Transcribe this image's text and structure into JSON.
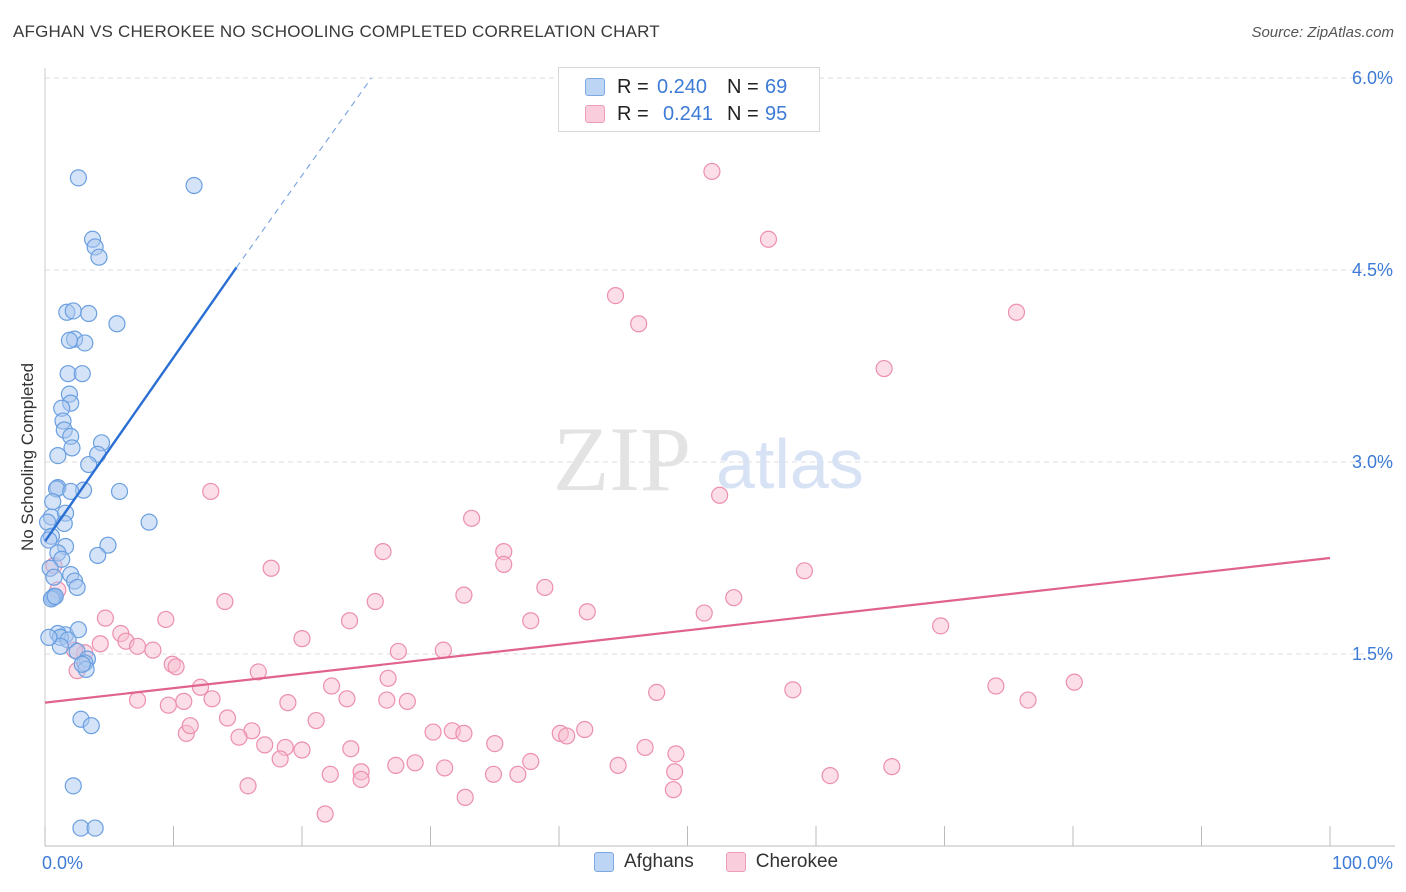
{
  "title": "AFGHAN VS CHEROKEE NO SCHOOLING COMPLETED CORRELATION CHART",
  "source": "Source: ZipAtlas.com",
  "watermark": {
    "zip": "ZIP",
    "atlas": "atlas"
  },
  "legend": {
    "rows": [
      {
        "r_label": "R =",
        "r_value": "0.240",
        "n_label": "N =",
        "n_value": "69"
      },
      {
        "r_label": "R =",
        "r_value": "0.241",
        "n_label": "N =",
        "n_value": "95"
      }
    ]
  },
  "bottom_legend": {
    "afghans": "Afghans",
    "cherokee": "Cherokee"
  },
  "colors": {
    "afghans_fill": "#a9c8f0",
    "afghans_stroke": "#6a9fe0",
    "afghans_line": "#2a6fd4",
    "cherokee_fill": "#f7bdd0",
    "cherokee_stroke": "#ec8fae",
    "cherokee_line": "#e0628e",
    "tick_text": "#3d7bd6",
    "grid": "#dcdcdc"
  },
  "chart_data": {
    "type": "scatter",
    "title": "AFGHAN VS CHEROKEE NO SCHOOLING COMPLETED CORRELATION CHART",
    "xlabel": "",
    "ylabel": "No Schooling Completed",
    "xlim": [
      0,
      100
    ],
    "ylim": [
      0,
      6.0
    ],
    "x_tick_labels": [
      "0.0%",
      "100.0%"
    ],
    "y_ticks": [
      1.5,
      3.0,
      4.5,
      6.0
    ],
    "y_tick_labels": [
      "1.5%",
      "3.0%",
      "4.5%",
      "6.0%"
    ],
    "grid": true,
    "series": [
      {
        "name": "Afghans",
        "points": [
          [
            2.6,
            5.22
          ],
          [
            11.6,
            5.16
          ],
          [
            3.7,
            4.74
          ],
          [
            3.9,
            4.68
          ],
          [
            4.2,
            4.6
          ],
          [
            1.7,
            4.17
          ],
          [
            2.2,
            4.18
          ],
          [
            3.4,
            4.16
          ],
          [
            5.6,
            4.08
          ],
          [
            2.3,
            3.96
          ],
          [
            1.9,
            3.95
          ],
          [
            3.1,
            3.93
          ],
          [
            1.8,
            3.69
          ],
          [
            2.9,
            3.69
          ],
          [
            1.9,
            3.53
          ],
          [
            2.0,
            3.46
          ],
          [
            1.3,
            3.42
          ],
          [
            1.4,
            3.32
          ],
          [
            1.5,
            3.25
          ],
          [
            2.0,
            3.2
          ],
          [
            4.4,
            3.15
          ],
          [
            2.1,
            3.11
          ],
          [
            1.0,
            3.05
          ],
          [
            4.1,
            3.06
          ],
          [
            3.4,
            2.98
          ],
          [
            1.0,
            2.8
          ],
          [
            0.9,
            2.79
          ],
          [
            3.0,
            2.78
          ],
          [
            2.0,
            2.77
          ],
          [
            5.8,
            2.77
          ],
          [
            0.6,
            2.69
          ],
          [
            0.5,
            2.57
          ],
          [
            1.6,
            2.6
          ],
          [
            0.2,
            2.53
          ],
          [
            1.5,
            2.52
          ],
          [
            8.1,
            2.53
          ],
          [
            0.5,
            2.42
          ],
          [
            0.3,
            2.39
          ],
          [
            4.9,
            2.35
          ],
          [
            1.6,
            2.34
          ],
          [
            1.0,
            2.29
          ],
          [
            4.1,
            2.27
          ],
          [
            1.3,
            2.24
          ],
          [
            0.4,
            2.17
          ],
          [
            2.0,
            2.12
          ],
          [
            0.7,
            2.1
          ],
          [
            2.3,
            2.07
          ],
          [
            2.5,
            2.02
          ],
          [
            0.7,
            1.95
          ],
          [
            0.6,
            1.94
          ],
          [
            0.5,
            1.93
          ],
          [
            0.8,
            1.95
          ],
          [
            1.6,
            1.65
          ],
          [
            2.6,
            1.69
          ],
          [
            1.0,
            1.66
          ],
          [
            1.2,
            1.63
          ],
          [
            1.8,
            1.61
          ],
          [
            1.2,
            1.56
          ],
          [
            2.5,
            1.52
          ],
          [
            3.3,
            1.46
          ],
          [
            3.1,
            1.43
          ],
          [
            3.2,
            1.38
          ],
          [
            2.9,
            1.42
          ],
          [
            2.8,
            0.99
          ],
          [
            3.6,
            0.94
          ],
          [
            2.2,
            0.47
          ],
          [
            2.8,
            0.14
          ],
          [
            3.9,
            0.14
          ],
          [
            0.3,
            1.63
          ]
        ]
      },
      {
        "name": "Cherokee",
        "points": [
          [
            51.9,
            5.27
          ],
          [
            56.3,
            4.74
          ],
          [
            44.4,
            4.3
          ],
          [
            46.2,
            4.08
          ],
          [
            75.6,
            4.17
          ],
          [
            65.3,
            3.73
          ],
          [
            12.9,
            2.77
          ],
          [
            52.5,
            2.74
          ],
          [
            33.2,
            2.56
          ],
          [
            35.7,
            2.3
          ],
          [
            26.3,
            2.3
          ],
          [
            17.6,
            2.17
          ],
          [
            35.7,
            2.2
          ],
          [
            59.1,
            2.15
          ],
          [
            0.7,
            2.19
          ],
          [
            1.0,
            2.0
          ],
          [
            38.9,
            2.02
          ],
          [
            32.6,
            1.96
          ],
          [
            53.6,
            1.94
          ],
          [
            14.0,
            1.91
          ],
          [
            25.7,
            1.91
          ],
          [
            42.2,
            1.83
          ],
          [
            51.3,
            1.82
          ],
          [
            4.7,
            1.78
          ],
          [
            9.4,
            1.77
          ],
          [
            23.7,
            1.76
          ],
          [
            37.8,
            1.76
          ],
          [
            69.7,
            1.72
          ],
          [
            5.9,
            1.66
          ],
          [
            6.3,
            1.6
          ],
          [
            20.0,
            1.62
          ],
          [
            4.3,
            1.58
          ],
          [
            3.1,
            1.51
          ],
          [
            2.3,
            1.53
          ],
          [
            7.2,
            1.56
          ],
          [
            8.4,
            1.53
          ],
          [
            27.5,
            1.52
          ],
          [
            2.5,
            1.37
          ],
          [
            31.0,
            1.53
          ],
          [
            9.9,
            1.42
          ],
          [
            10.2,
            1.4
          ],
          [
            16.6,
            1.36
          ],
          [
            12.1,
            1.24
          ],
          [
            26.7,
            1.31
          ],
          [
            22.3,
            1.25
          ],
          [
            23.5,
            1.15
          ],
          [
            7.2,
            1.14
          ],
          [
            47.6,
            1.2
          ],
          [
            58.2,
            1.22
          ],
          [
            74.0,
            1.25
          ],
          [
            80.1,
            1.28
          ],
          [
            9.6,
            1.1
          ],
          [
            10.8,
            1.13
          ],
          [
            13.0,
            1.15
          ],
          [
            18.9,
            1.12
          ],
          [
            26.6,
            1.14
          ],
          [
            28.2,
            1.13
          ],
          [
            14.2,
            1.0
          ],
          [
            21.1,
            0.98
          ],
          [
            31.7,
            0.9
          ],
          [
            32.6,
            0.88
          ],
          [
            16.1,
            0.9
          ],
          [
            40.1,
            0.88
          ],
          [
            42.0,
            0.91
          ],
          [
            30.2,
            0.89
          ],
          [
            11.0,
            0.88
          ],
          [
            15.1,
            0.85
          ],
          [
            35.0,
            0.8
          ],
          [
            18.7,
            0.77
          ],
          [
            20.0,
            0.75
          ],
          [
            23.8,
            0.76
          ],
          [
            17.1,
            0.79
          ],
          [
            37.8,
            0.66
          ],
          [
            28.8,
            0.65
          ],
          [
            27.3,
            0.63
          ],
          [
            31.1,
            0.61
          ],
          [
            34.9,
            0.56
          ],
          [
            24.6,
            0.58
          ],
          [
            22.2,
            0.56
          ],
          [
            36.8,
            0.56
          ],
          [
            40.6,
            0.86
          ],
          [
            46.7,
            0.77
          ],
          [
            49.1,
            0.72
          ],
          [
            48.9,
            0.44
          ],
          [
            44.6,
            0.63
          ],
          [
            32.7,
            0.38
          ],
          [
            65.9,
            0.62
          ],
          [
            49.0,
            0.58
          ],
          [
            61.1,
            0.55
          ],
          [
            76.5,
            1.14
          ],
          [
            11.3,
            0.94
          ],
          [
            15.8,
            0.47
          ],
          [
            18.3,
            0.68
          ],
          [
            21.8,
            0.25
          ],
          [
            24.6,
            0.52
          ]
        ]
      }
    ],
    "trend_lines": [
      {
        "name": "Afghans",
        "x_start": 0,
        "y_start": 2.38,
        "x_end": 14.9,
        "y_end": 4.52,
        "dashed_to_x": 25.4,
        "dashed_to_y": 6.0
      },
      {
        "name": "Cherokee",
        "x_start": 0,
        "y_start": 1.12,
        "x_end": 100,
        "y_end": 2.25
      }
    ]
  }
}
